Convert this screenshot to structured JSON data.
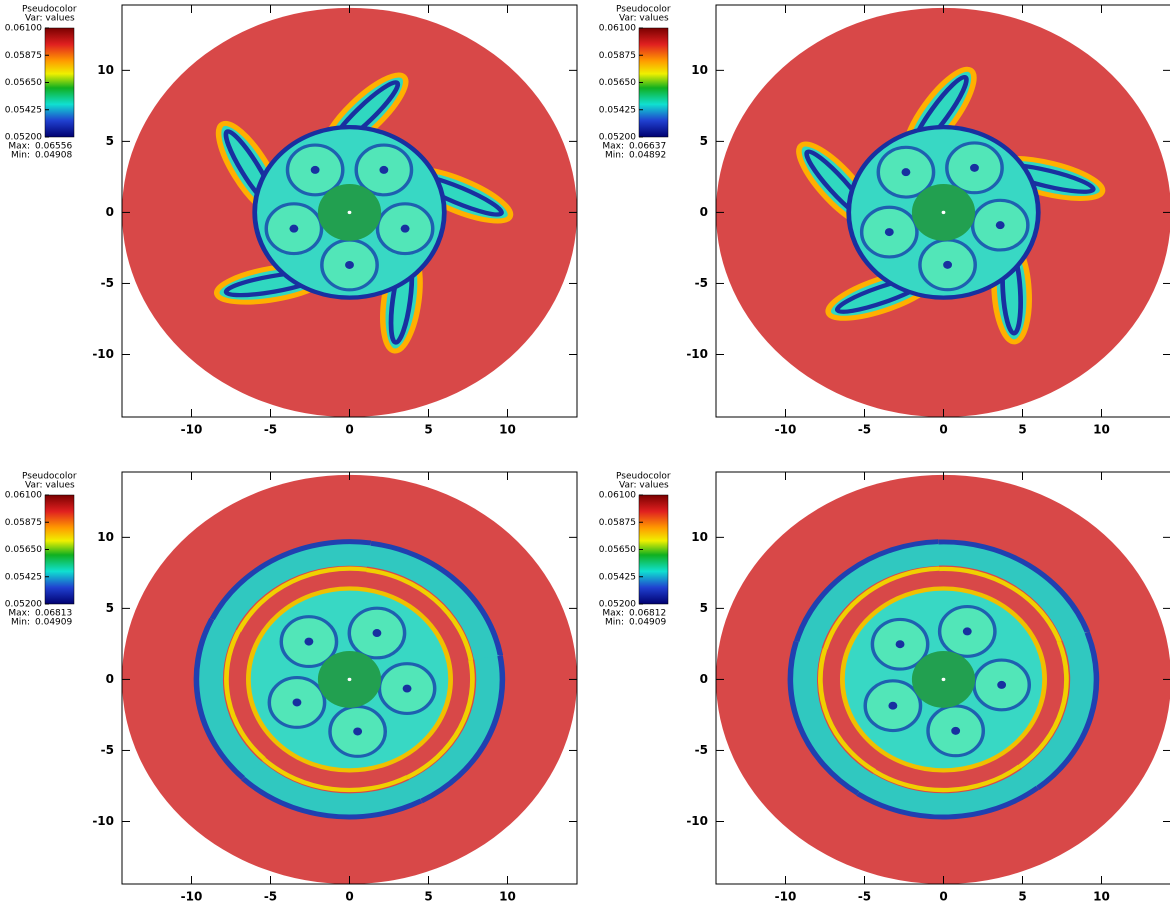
{
  "chart_data": [
    {
      "type": "pseudocolor",
      "legend_title": "Pseudocolor",
      "variable_label": "Var: values",
      "colorbar_ticks": [
        {
          "value": 0.061,
          "label": "0.06100"
        },
        0.05875,
        {
          "value": 0.0565,
          "label": "0.05650"
        },
        0.05425,
        {
          "value": 0.052,
          "label": "0.05200"
        }
      ],
      "max_label": "Max:",
      "max": 0.06556,
      "min_label": "Min:",
      "min": 0.04908,
      "xlim": [
        -14.4,
        14.4
      ],
      "ylim": [
        -14.4,
        14.6
      ],
      "xticks": [
        -10,
        -5,
        0,
        5,
        10
      ],
      "yticks": [
        -10,
        -5,
        0,
        5,
        10
      ]
    },
    {
      "type": "pseudocolor",
      "legend_title": "Pseudocolor",
      "variable_label": "Var: values",
      "colorbar_ticks": [
        {
          "value": 0.061,
          "label": "0.06100"
        },
        0.05875,
        {
          "value": 0.0565,
          "label": "0.05650"
        },
        0.05425,
        {
          "value": 0.052,
          "label": "0.05200"
        }
      ],
      "max_label": "Max:",
      "max": 0.06637,
      "min_label": "Min:",
      "min": 0.04892,
      "xlim": [
        -14.4,
        14.4
      ],
      "ylim": [
        -14.4,
        14.6
      ],
      "xticks": [
        -10,
        -5,
        0,
        5,
        10
      ],
      "yticks": [
        -10,
        -5,
        0,
        5,
        10
      ]
    },
    {
      "type": "pseudocolor",
      "legend_title": "Pseudocolor",
      "variable_label": "Var: values",
      "colorbar_ticks": [
        {
          "value": 0.061,
          "label": "0.06100"
        },
        0.05875,
        {
          "value": 0.0565,
          "label": "0.05650"
        },
        0.05425,
        {
          "value": 0.052,
          "label": "0.05200"
        }
      ],
      "max_label": "Max:",
      "max": 0.06813,
      "min_label": "Min:",
      "min": 0.04909,
      "xlim": [
        -14.4,
        14.4
      ],
      "ylim": [
        -14.4,
        14.6
      ],
      "xticks": [
        -10,
        -5,
        0,
        5,
        10
      ],
      "yticks": [
        -10,
        -5,
        0,
        5,
        10
      ]
    },
    {
      "type": "pseudocolor",
      "legend_title": "Pseudocolor",
      "variable_label": "Var: values",
      "colorbar_ticks": [
        {
          "value": 0.061,
          "label": "0.06100"
        },
        0.05875,
        {
          "value": 0.0565,
          "label": "0.05650"
        },
        0.05425,
        {
          "value": 0.052,
          "label": "0.05200"
        }
      ],
      "max_label": "Max:",
      "max": 0.06812,
      "min_label": "Min:",
      "min": 0.04909,
      "xlim": [
        -14.4,
        14.4
      ],
      "ylim": [
        -14.4,
        14.6
      ],
      "xticks": [
        -10,
        -5,
        0,
        5,
        10
      ],
      "yticks": [
        -10,
        -5,
        0,
        5,
        10
      ]
    }
  ]
}
